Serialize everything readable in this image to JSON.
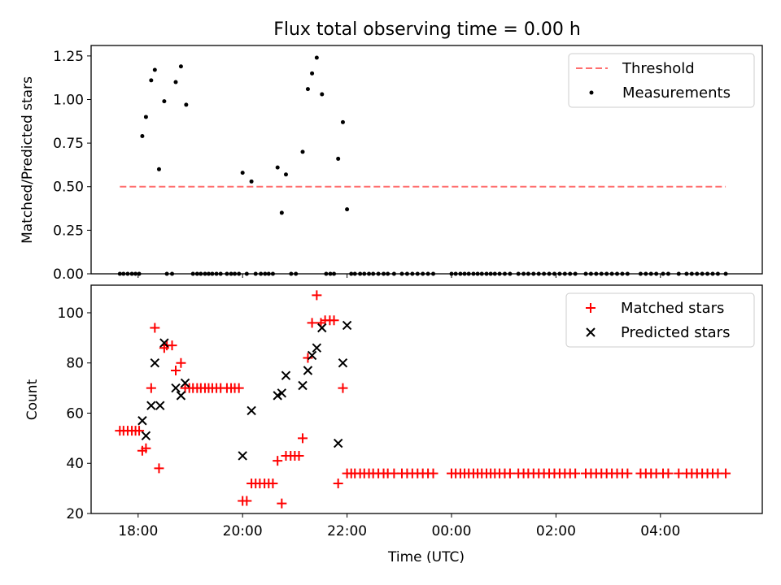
{
  "chart_data": [
    {
      "type": "scatter",
      "title": "Flux total observing time = 0.00 h",
      "ylabel": "Matched/Predicted stars",
      "xlabel": "",
      "xlim_hours": [
        17.1,
        5.95
      ],
      "ylim": [
        0,
        1.31
      ],
      "y_ticks": [
        {
          "value": 0.0,
          "label": "0.00"
        },
        {
          "value": 0.25,
          "label": "0.25"
        },
        {
          "value": 0.5,
          "label": "0.50"
        },
        {
          "value": 0.75,
          "label": "0.75"
        },
        {
          "value": 1.0,
          "label": "1.00"
        },
        {
          "value": 1.25,
          "label": "1.25"
        }
      ],
      "threshold": {
        "name": "Threshold",
        "value": 0.5,
        "x_range": [
          17.65,
          5.25
        ],
        "color": "#ff6f6f"
      },
      "legend": {
        "position": "top-right",
        "entries": [
          "Threshold",
          "Measurements"
        ]
      },
      "series": [
        {
          "name": "Measurements",
          "color": "#000000",
          "marker": "dot",
          "nonzero_points": [
            [
              18.08,
              0.79
            ],
            [
              18.15,
              0.9
            ],
            [
              18.25,
              1.11
            ],
            [
              18.32,
              1.17
            ],
            [
              18.4,
              0.6
            ],
            [
              18.5,
              0.99
            ],
            [
              18.72,
              1.1
            ],
            [
              18.82,
              1.19
            ],
            [
              18.92,
              0.97
            ],
            [
              20.0,
              0.58
            ],
            [
              20.17,
              0.53
            ],
            [
              20.67,
              0.61
            ],
            [
              20.75,
              0.35
            ],
            [
              20.83,
              0.57
            ],
            [
              21.15,
              0.7
            ],
            [
              21.25,
              1.06
            ],
            [
              21.33,
              1.15
            ],
            [
              21.42,
              1.24
            ],
            [
              21.52,
              1.03
            ],
            [
              21.83,
              0.66
            ],
            [
              21.92,
              0.87
            ],
            [
              22.0,
              0.37
            ]
          ],
          "zero_valued_at_hours": [
            17.65,
            17.72,
            17.8,
            17.88,
            17.95,
            18.02,
            18.55,
            18.65,
            19.05,
            19.13,
            19.2,
            19.28,
            19.35,
            19.42,
            19.5,
            19.58,
            19.7,
            19.78,
            19.85,
            19.93,
            20.08,
            20.25,
            20.35,
            20.43,
            20.5,
            20.58,
            20.93,
            21.02,
            21.6,
            21.68,
            21.75,
            22.08,
            22.15,
            22.25,
            22.33,
            22.42,
            22.5,
            22.6,
            22.7,
            22.78,
            22.9,
            23.05,
            23.15,
            23.25,
            23.35,
            23.45,
            23.55,
            23.65,
            24.0,
            24.08,
            24.17,
            24.25,
            24.33,
            24.42,
            24.5,
            24.58,
            24.67,
            24.75,
            24.83,
            24.92,
            25.02,
            25.12,
            25.28,
            25.38,
            25.47,
            25.57,
            25.67,
            25.77,
            25.87,
            25.97,
            26.07,
            26.17,
            26.27,
            26.37,
            26.57,
            26.67,
            26.77,
            26.87,
            26.97,
            27.07,
            27.17,
            27.27,
            27.37,
            27.62,
            27.72,
            27.82,
            27.92,
            28.05,
            28.15,
            28.35,
            28.5,
            28.6,
            28.7,
            28.8,
            28.9,
            29.0,
            29.1,
            29.25
          ]
        }
      ]
    },
    {
      "type": "scatter",
      "title": "",
      "xlabel": "Time (UTC)",
      "ylabel": "Count",
      "xlim_hours": [
        17.1,
        5.95
      ],
      "ylim": [
        20,
        111
      ],
      "x_ticks": [
        {
          "hour": 18,
          "label": "18:00"
        },
        {
          "hour": 20,
          "label": "20:00"
        },
        {
          "hour": 22,
          "label": "22:00"
        },
        {
          "hour": 24,
          "label": "00:00"
        },
        {
          "hour": 26,
          "label": "02:00"
        },
        {
          "hour": 28,
          "label": "04:00"
        }
      ],
      "y_ticks": [
        {
          "value": 20,
          "label": "20"
        },
        {
          "value": 40,
          "label": "40"
        },
        {
          "value": 60,
          "label": "60"
        },
        {
          "value": 80,
          "label": "80"
        },
        {
          "value": 100,
          "label": "100"
        }
      ],
      "legend": {
        "position": "top-right",
        "entries": [
          "Matched stars",
          "Predicted stars"
        ]
      },
      "series": [
        {
          "name": "Matched stars",
          "color": "#ff0000",
          "marker": "plus",
          "points": [
            [
              17.65,
              53
            ],
            [
              17.72,
              53
            ],
            [
              17.8,
              53
            ],
            [
              17.88,
              53
            ],
            [
              17.95,
              53
            ],
            [
              18.02,
              53
            ],
            [
              18.08,
              45
            ],
            [
              18.15,
              46
            ],
            [
              18.25,
              70
            ],
            [
              18.32,
              94
            ],
            [
              18.4,
              38
            ],
            [
              18.5,
              86
            ],
            [
              18.55,
              87
            ],
            [
              18.65,
              87
            ],
            [
              18.72,
              77
            ],
            [
              18.82,
              80
            ],
            [
              18.9,
              70
            ],
            [
              18.98,
              70
            ],
            [
              19.05,
              70
            ],
            [
              19.13,
              70
            ],
            [
              19.2,
              70
            ],
            [
              19.28,
              70
            ],
            [
              19.35,
              70
            ],
            [
              19.42,
              70
            ],
            [
              19.5,
              70
            ],
            [
              19.58,
              70
            ],
            [
              19.7,
              70
            ],
            [
              19.78,
              70
            ],
            [
              19.85,
              70
            ],
            [
              19.93,
              70
            ],
            [
              20.0,
              25
            ],
            [
              20.08,
              25
            ],
            [
              20.17,
              32
            ],
            [
              20.25,
              32
            ],
            [
              20.33,
              32
            ],
            [
              20.42,
              32
            ],
            [
              20.5,
              32
            ],
            [
              20.58,
              32
            ],
            [
              20.67,
              41
            ],
            [
              20.75,
              24
            ],
            [
              20.83,
              43
            ],
            [
              20.92,
              43
            ],
            [
              21.0,
              43
            ],
            [
              21.08,
              43
            ],
            [
              21.15,
              50
            ],
            [
              21.25,
              82
            ],
            [
              21.33,
              96
            ],
            [
              21.42,
              107
            ],
            [
              21.5,
              96
            ],
            [
              21.58,
              97
            ],
            [
              21.67,
              97
            ],
            [
              21.75,
              97
            ],
            [
              21.83,
              32
            ],
            [
              21.92,
              70
            ],
            [
              22.0,
              36
            ],
            [
              22.08,
              36
            ],
            [
              22.15,
              36
            ],
            [
              22.25,
              36
            ],
            [
              22.33,
              36
            ],
            [
              22.42,
              36
            ],
            [
              22.5,
              36
            ],
            [
              22.6,
              36
            ],
            [
              22.7,
              36
            ],
            [
              22.78,
              36
            ],
            [
              22.9,
              36
            ],
            [
              23.05,
              36
            ],
            [
              23.15,
              36
            ],
            [
              23.25,
              36
            ],
            [
              23.35,
              36
            ],
            [
              23.45,
              36
            ],
            [
              23.55,
              36
            ],
            [
              23.65,
              36
            ],
            [
              24.0,
              36
            ],
            [
              24.08,
              36
            ],
            [
              24.17,
              36
            ],
            [
              24.25,
              36
            ],
            [
              24.33,
              36
            ],
            [
              24.42,
              36
            ],
            [
              24.5,
              36
            ],
            [
              24.58,
              36
            ],
            [
              24.67,
              36
            ],
            [
              24.75,
              36
            ],
            [
              24.83,
              36
            ],
            [
              24.92,
              36
            ],
            [
              25.02,
              36
            ],
            [
              25.12,
              36
            ],
            [
              25.28,
              36
            ],
            [
              25.38,
              36
            ],
            [
              25.47,
              36
            ],
            [
              25.57,
              36
            ],
            [
              25.67,
              36
            ],
            [
              25.77,
              36
            ],
            [
              25.87,
              36
            ],
            [
              25.97,
              36
            ],
            [
              26.07,
              36
            ],
            [
              26.17,
              36
            ],
            [
              26.27,
              36
            ],
            [
              26.37,
              36
            ],
            [
              26.57,
              36
            ],
            [
              26.67,
              36
            ],
            [
              26.77,
              36
            ],
            [
              26.87,
              36
            ],
            [
              26.97,
              36
            ],
            [
              27.07,
              36
            ],
            [
              27.17,
              36
            ],
            [
              27.27,
              36
            ],
            [
              27.37,
              36
            ],
            [
              27.62,
              36
            ],
            [
              27.72,
              36
            ],
            [
              27.82,
              36
            ],
            [
              27.92,
              36
            ],
            [
              28.05,
              36
            ],
            [
              28.15,
              36
            ],
            [
              28.35,
              36
            ],
            [
              28.5,
              36
            ],
            [
              28.6,
              36
            ],
            [
              28.7,
              36
            ],
            [
              28.8,
              36
            ],
            [
              28.9,
              36
            ],
            [
              29.0,
              36
            ],
            [
              29.1,
              36
            ],
            [
              29.25,
              36
            ]
          ]
        },
        {
          "name": "Predicted stars",
          "color": "#000000",
          "marker": "x",
          "points": [
            [
              18.08,
              57
            ],
            [
              18.15,
              51
            ],
            [
              18.25,
              63
            ],
            [
              18.32,
              80
            ],
            [
              18.42,
              63
            ],
            [
              18.5,
              88
            ],
            [
              18.72,
              70
            ],
            [
              18.82,
              67
            ],
            [
              18.9,
              72
            ],
            [
              20.0,
              43
            ],
            [
              20.17,
              61
            ],
            [
              20.67,
              67
            ],
            [
              20.75,
              68
            ],
            [
              20.83,
              75
            ],
            [
              21.15,
              71
            ],
            [
              21.25,
              77
            ],
            [
              21.33,
              83
            ],
            [
              21.42,
              86
            ],
            [
              21.52,
              94
            ],
            [
              21.83,
              48
            ],
            [
              21.92,
              80
            ],
            [
              22.0,
              95
            ]
          ]
        }
      ]
    }
  ]
}
